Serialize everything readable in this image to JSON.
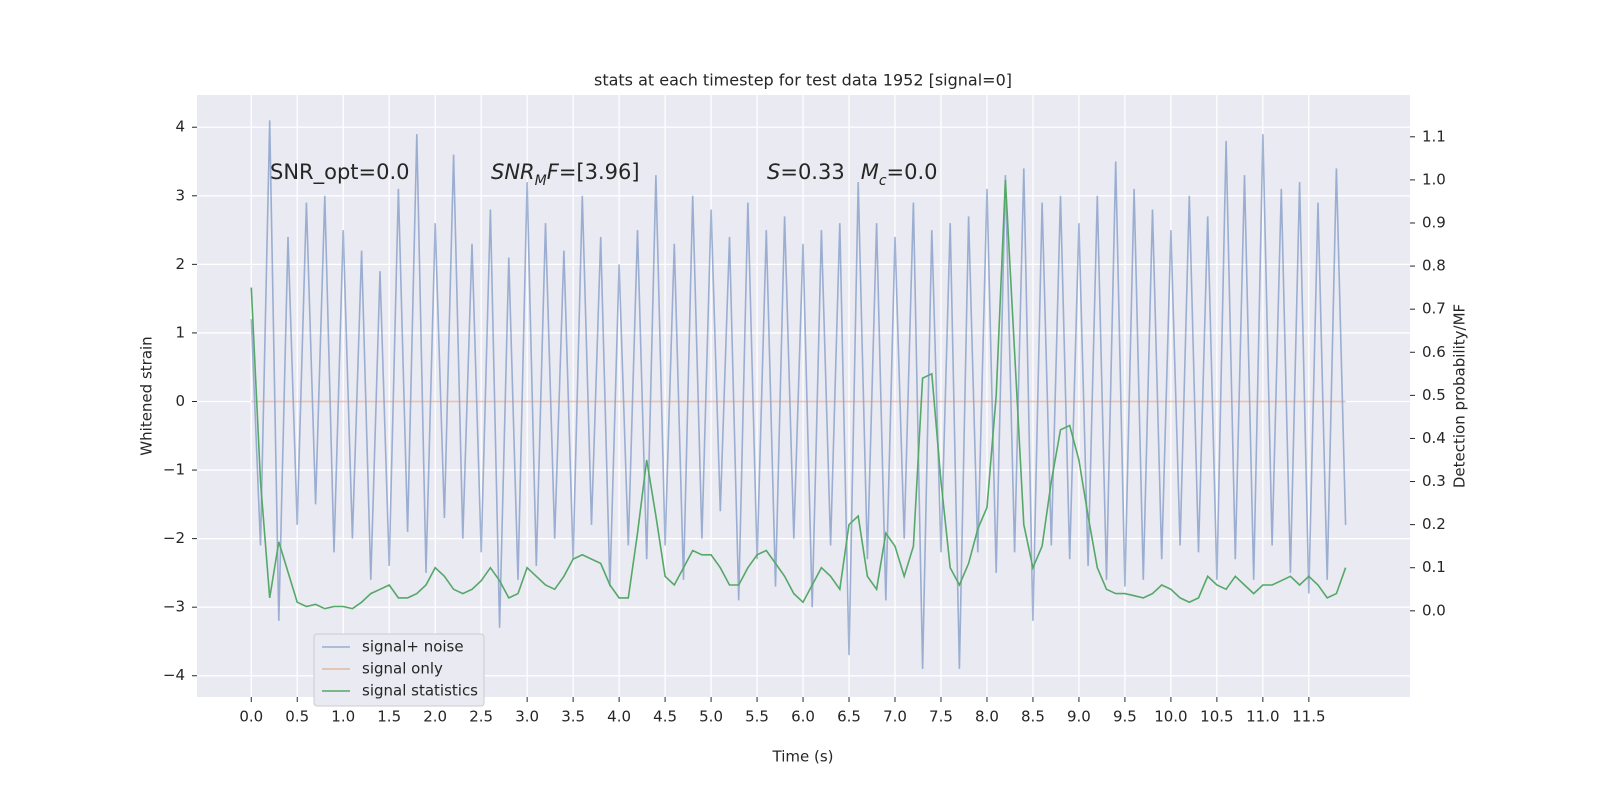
{
  "chart_data": {
    "type": "line",
    "title": "stats at each timestep for test data 1952 [signal=0]",
    "xlabel": "Time (s)",
    "ylabel": "Whitened strain",
    "y2label": "Detection probability/MF",
    "annotations": [
      [
        "SNR_opt=0.0"
      ],
      [
        "SNR",
        "M",
        "F",
        "=[3.96]"
      ],
      [
        "S",
        "=0.33",
        "M",
        "c",
        "=0.0"
      ]
    ],
    "x": [
      0,
      0.1,
      0.2,
      0.3,
      0.4,
      0.5,
      0.6,
      0.7,
      0.8,
      0.9,
      1,
      1.1,
      1.2,
      1.3,
      1.4,
      1.5,
      1.6,
      1.7,
      1.8,
      1.9,
      2,
      2.1,
      2.2,
      2.3,
      2.4,
      2.5,
      2.6,
      2.7,
      2.8,
      2.9,
      3,
      3.1,
      3.2,
      3.3,
      3.4,
      3.5,
      3.6,
      3.7,
      3.8,
      3.9,
      4,
      4.1,
      4.2,
      4.3,
      4.4,
      4.5,
      4.6,
      4.7,
      4.8,
      4.9,
      5,
      5.1,
      5.2,
      5.3,
      5.4,
      5.5,
      5.6,
      5.7,
      5.8,
      5.9,
      6,
      6.1,
      6.2,
      6.3,
      6.4,
      6.5,
      6.6,
      6.7,
      6.8,
      6.9,
      7,
      7.1,
      7.2,
      7.3,
      7.4,
      7.5,
      7.6,
      7.7,
      7.8,
      7.9,
      8,
      8.1,
      8.2,
      8.3,
      8.4,
      8.5,
      8.6,
      8.7,
      8.8,
      8.9,
      9,
      9.1,
      9.2,
      9.3,
      9.4,
      9.5,
      9.6,
      9.7,
      9.8,
      9.9,
      10,
      10.1,
      10.2,
      10.3,
      10.4,
      10.5,
      10.6,
      10.7,
      10.8,
      10.9,
      11,
      11.1,
      11.2,
      11.3,
      11.4,
      11.5,
      11.6,
      11.7,
      11.8,
      11.9
    ],
    "series": [
      {
        "name": "signal+ noise",
        "color": "#4c72b0",
        "axis": "y",
        "values": [
          1.2,
          -2.1,
          4.1,
          -3.2,
          2.4,
          -1.8,
          2.9,
          -1.5,
          3.0,
          -2.2,
          2.5,
          -2.0,
          2.2,
          -2.6,
          1.9,
          -2.4,
          3.1,
          -1.9,
          3.9,
          -2.5,
          2.6,
          -1.7,
          3.6,
          -2.0,
          2.3,
          -2.2,
          2.8,
          -3.3,
          2.1,
          -2.6,
          3.2,
          -2.4,
          2.6,
          -2.0,
          2.2,
          -2.3,
          3.0,
          -1.8,
          2.4,
          -2.7,
          2.0,
          -2.1,
          2.5,
          -2.3,
          3.3,
          -2.1,
          2.3,
          -2.6,
          3.0,
          -2.0,
          2.8,
          -1.6,
          2.4,
          -2.9,
          2.9,
          -2.3,
          2.5,
          -2.7,
          2.7,
          -2.0,
          2.3,
          -3.0,
          2.5,
          -2.1,
          2.6,
          -3.7,
          3.2,
          -2.3,
          2.6,
          -2.9,
          2.4,
          -2.0,
          2.9,
          -3.9,
          2.5,
          -2.2,
          2.6,
          -3.9,
          2.7,
          -2.2,
          3.1,
          -2.5,
          3.3,
          -2.2,
          3.4,
          -3.2,
          2.9,
          -2.1,
          3.0,
          -2.3,
          2.6,
          -2.4,
          3.0,
          -2.6,
          3.5,
          -2.7,
          3.1,
          -2.6,
          2.8,
          -2.3,
          2.5,
          -2.1,
          3.0,
          -2.2,
          2.7,
          -2.6,
          3.8,
          -2.3,
          3.3,
          -2.6,
          3.9,
          -2.1,
          3.1,
          -2.5,
          3.2,
          -2.8,
          2.9,
          -2.6,
          3.4,
          -1.8
        ]
      },
      {
        "name": "signal only",
        "color": "#dd8452",
        "axis": "y",
        "values": [
          0,
          0,
          0,
          0,
          0,
          0,
          0,
          0,
          0,
          0,
          0,
          0,
          0,
          0,
          0,
          0,
          0,
          0,
          0,
          0,
          0,
          0,
          0,
          0,
          0,
          0,
          0,
          0,
          0,
          0,
          0,
          0,
          0,
          0,
          0,
          0,
          0,
          0,
          0,
          0,
          0,
          0,
          0,
          0,
          0,
          0,
          0,
          0,
          0,
          0,
          0,
          0,
          0,
          0,
          0,
          0,
          0,
          0,
          0,
          0,
          0,
          0,
          0,
          0,
          0,
          0,
          0,
          0,
          0,
          0,
          0,
          0,
          0,
          0,
          0,
          0,
          0,
          0,
          0,
          0,
          0,
          0,
          0,
          0,
          0,
          0,
          0,
          0,
          0,
          0,
          0,
          0,
          0,
          0,
          0,
          0,
          0,
          0,
          0,
          0,
          0,
          0,
          0,
          0,
          0,
          0,
          0,
          0,
          0,
          0,
          0,
          0,
          0,
          0,
          0,
          0,
          0,
          0,
          0,
          0
        ]
      },
      {
        "name": "signal statistics",
        "color": "#55a868",
        "axis": "y2",
        "values": [
          0.75,
          0.3,
          0.03,
          0.16,
          0.09,
          0.02,
          0.01,
          0.015,
          0.005,
          0.01,
          0.01,
          0.005,
          0.02,
          0.04,
          0.05,
          0.06,
          0.03,
          0.03,
          0.04,
          0.06,
          0.1,
          0.08,
          0.05,
          0.04,
          0.05,
          0.07,
          0.1,
          0.07,
          0.03,
          0.04,
          0.1,
          0.08,
          0.06,
          0.05,
          0.08,
          0.12,
          0.13,
          0.12,
          0.11,
          0.06,
          0.03,
          0.03,
          0.18,
          0.35,
          0.22,
          0.08,
          0.06,
          0.1,
          0.14,
          0.13,
          0.13,
          0.1,
          0.06,
          0.06,
          0.1,
          0.13,
          0.14,
          0.11,
          0.08,
          0.04,
          0.02,
          0.06,
          0.1,
          0.08,
          0.05,
          0.2,
          0.22,
          0.08,
          0.05,
          0.18,
          0.15,
          0.08,
          0.15,
          0.54,
          0.55,
          0.3,
          0.1,
          0.06,
          0.11,
          0.19,
          0.24,
          0.5,
          1.0,
          0.6,
          0.2,
          0.1,
          0.15,
          0.3,
          0.42,
          0.43,
          0.35,
          0.22,
          0.1,
          0.05,
          0.04,
          0.04,
          0.035,
          0.03,
          0.04,
          0.06,
          0.05,
          0.03,
          0.02,
          0.03,
          0.08,
          0.06,
          0.05,
          0.08,
          0.06,
          0.04,
          0.06,
          0.06,
          0.07,
          0.08,
          0.06,
          0.08,
          0.06,
          0.03,
          0.04,
          0.1
        ]
      }
    ],
    "xlim": [
      -0.59,
      12.6
    ],
    "xticks": [
      {
        "value": 0,
        "label": "0.0"
      },
      0.5,
      {
        "value": 1,
        "label": "1.0"
      },
      1.5,
      {
        "value": 2,
        "label": "2.0"
      },
      2.5,
      {
        "value": 3,
        "label": "3.0"
      },
      3.5,
      {
        "value": 4,
        "label": "4.0"
      },
      4.5,
      {
        "value": 5,
        "label": "5.0"
      },
      5.5,
      {
        "value": 6,
        "label": "6.0"
      },
      6.5,
      {
        "value": 7,
        "label": "7.0"
      },
      7.5,
      {
        "value": 8,
        "label": "8.0"
      },
      8.5,
      {
        "value": 9,
        "label": "9.0"
      },
      9.5,
      {
        "value": 10,
        "label": "10.0"
      },
      10.5,
      {
        "value": 11,
        "label": "11.0"
      },
      11.5
    ],
    "ylim": [
      -4.31,
      4.47
    ],
    "yticks": [
      {
        "value": -4,
        "label": "−4"
      },
      {
        "value": -3,
        "label": "−3"
      },
      {
        "value": -2,
        "label": "−2"
      },
      {
        "value": -1,
        "label": "−1"
      },
      0,
      1,
      2,
      3,
      4
    ],
    "y2lim": [
      -0.2,
      1.197
    ],
    "y2ticks": [
      {
        "value": 0,
        "label": "0.0"
      },
      0.1,
      0.2,
      0.3,
      0.4,
      0.5,
      0.6,
      0.7,
      0.8,
      0.9,
      {
        "value": 1,
        "label": "1.0"
      },
      1.1
    ],
    "grid": true,
    "legend": "lower left"
  }
}
